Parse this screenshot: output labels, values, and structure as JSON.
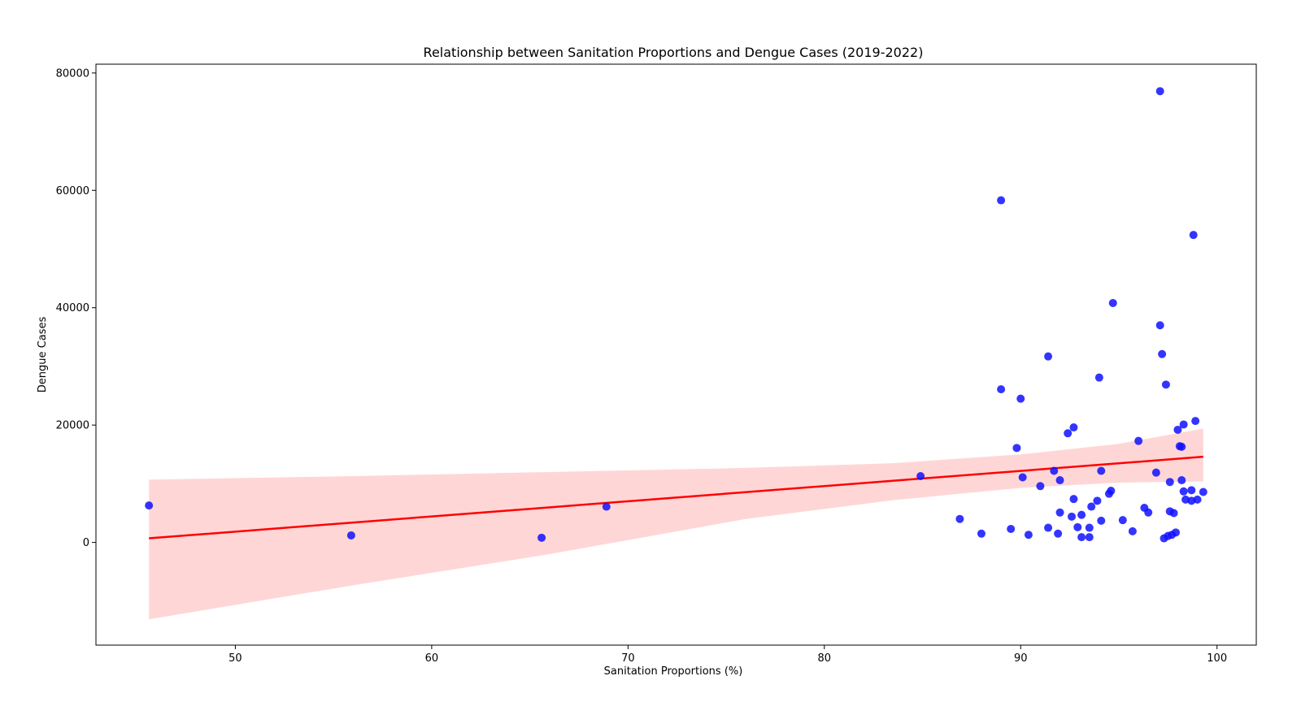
{
  "chart_data": {
    "type": "scatter",
    "title": "Relationship between Sanitation Proportions and Dengue Cases (2019-2022)",
    "xlabel": "Sanitation Proportions (%)",
    "ylabel": "Dengue Cases",
    "xlim": [
      42.9,
      102.0
    ],
    "ylim": [
      -17500,
      81500
    ],
    "xticks": [
      50,
      60,
      70,
      80,
      90,
      100
    ],
    "yticks": [
      0,
      20000,
      40000,
      60000,
      80000
    ],
    "grid": false,
    "legend": "none",
    "colors": {
      "points": "#1010ff",
      "regression_line": "#ff0000",
      "confidence_band": "#ffd6d6"
    },
    "points": [
      [
        45.6,
        6300
      ],
      [
        55.9,
        1200
      ],
      [
        65.6,
        800
      ],
      [
        68.9,
        6100
      ],
      [
        84.9,
        11300
      ],
      [
        86.9,
        4000
      ],
      [
        88.0,
        1500
      ],
      [
        89.0,
        58300
      ],
      [
        89.0,
        26100
      ],
      [
        89.5,
        2300
      ],
      [
        89.8,
        16100
      ],
      [
        90.0,
        24500
      ],
      [
        90.1,
        11100
      ],
      [
        90.4,
        1300
      ],
      [
        91.0,
        9600
      ],
      [
        91.4,
        31700
      ],
      [
        91.4,
        2500
      ],
      [
        91.7,
        12200
      ],
      [
        91.9,
        1500
      ],
      [
        92.0,
        5100
      ],
      [
        92.0,
        10600
      ],
      [
        92.4,
        18600
      ],
      [
        92.6,
        4400
      ],
      [
        92.7,
        19600
      ],
      [
        92.7,
        7400
      ],
      [
        92.9,
        2600
      ],
      [
        93.1,
        4700
      ],
      [
        93.1,
        900
      ],
      [
        93.5,
        900
      ],
      [
        93.5,
        2500
      ],
      [
        93.6,
        6100
      ],
      [
        93.9,
        7100
      ],
      [
        94.0,
        28100
      ],
      [
        94.1,
        12200
      ],
      [
        94.1,
        3700
      ],
      [
        94.5,
        8300
      ],
      [
        94.6,
        8800
      ],
      [
        94.7,
        40800
      ],
      [
        95.2,
        3800
      ],
      [
        95.7,
        1900
      ],
      [
        96.0,
        17300
      ],
      [
        96.3,
        5900
      ],
      [
        96.5,
        5100
      ],
      [
        96.9,
        11900
      ],
      [
        97.1,
        76900
      ],
      [
        97.1,
        37000
      ],
      [
        97.2,
        32100
      ],
      [
        97.3,
        700
      ],
      [
        97.4,
        26900
      ],
      [
        97.5,
        1100
      ],
      [
        97.6,
        10300
      ],
      [
        97.6,
        5300
      ],
      [
        97.7,
        1300
      ],
      [
        97.8,
        5000
      ],
      [
        97.9,
        1700
      ],
      [
        98.0,
        19200
      ],
      [
        98.1,
        16400
      ],
      [
        98.2,
        16300
      ],
      [
        98.2,
        10600
      ],
      [
        98.3,
        20100
      ],
      [
        98.3,
        8700
      ],
      [
        98.4,
        7300
      ],
      [
        98.7,
        8900
      ],
      [
        98.7,
        7100
      ],
      [
        98.8,
        52400
      ],
      [
        98.9,
        20700
      ],
      [
        99.0,
        7300
      ],
      [
        99.3,
        8600
      ]
    ],
    "regression_line": [
      [
        45.6,
        700
      ],
      [
        99.3,
        14600
      ]
    ],
    "confidence_band": {
      "x": [
        45.6,
        56,
        66,
        76,
        83.5,
        90,
        95,
        99.3
      ],
      "upper": [
        10700,
        11300,
        12000,
        12700,
        13500,
        15000,
        16800,
        19400
      ],
      "lower": [
        -13100,
        -7300,
        -2000,
        4000,
        7200,
        9300,
        10200,
        10400
      ]
    }
  }
}
